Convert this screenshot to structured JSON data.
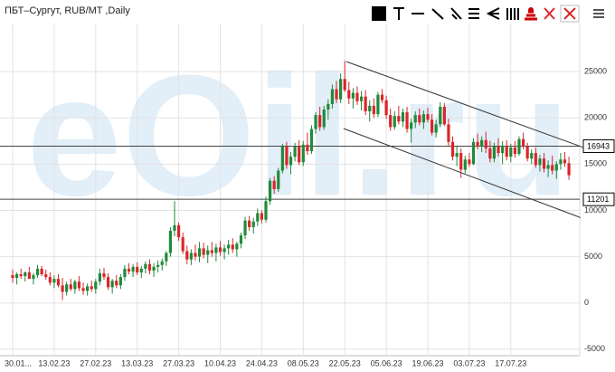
{
  "chart_data": {
    "type": "candlestick",
    "title": "ПБТ–Сургут, RUB/MT ,Daily",
    "watermark": "eOil.ru",
    "up_color": "#1f8a3b",
    "down_color": "#d9262a",
    "ylim": [
      -5700,
      29800
    ],
    "yticks": [
      -5000,
      0,
      5000,
      10000,
      15000,
      20000,
      25000
    ],
    "grid": true,
    "hlines": [
      16943,
      11201
    ],
    "trendlines": [
      {
        "x": [
          80.4,
          137.5
        ],
        "y": [
          26070,
          16800
        ]
      },
      {
        "x": [
          79.7,
          136.8
        ],
        "y": [
          18850,
          9220
        ]
      }
    ],
    "categories": [
      "30.01...",
      null,
      null,
      null,
      null,
      null,
      null,
      null,
      null,
      null,
      "13.02.23",
      null,
      null,
      null,
      null,
      null,
      null,
      null,
      null,
      null,
      "27.02.23",
      null,
      null,
      null,
      null,
      null,
      null,
      null,
      null,
      null,
      "13.03.23",
      null,
      null,
      null,
      null,
      null,
      null,
      null,
      null,
      null,
      "27.03.23",
      null,
      null,
      null,
      null,
      null,
      null,
      null,
      null,
      null,
      "10.04.23",
      null,
      null,
      null,
      null,
      null,
      null,
      null,
      null,
      null,
      "24.04.23",
      null,
      null,
      null,
      null,
      null,
      null,
      null,
      null,
      null,
      "08.05.23",
      null,
      null,
      null,
      null,
      null,
      null,
      null,
      null,
      null,
      "22.05.23",
      null,
      null,
      null,
      null,
      null,
      null,
      null,
      null,
      null,
      "05.06.23",
      null,
      null,
      null,
      null,
      null,
      null,
      null,
      null,
      null,
      "19.06.23",
      null,
      null,
      null,
      null,
      null,
      null,
      null,
      null,
      null,
      "03.07.23",
      null,
      null,
      null,
      null,
      null,
      null,
      null,
      null,
      null,
      "17.07.23",
      null,
      null,
      null,
      null,
      null,
      null,
      null,
      null,
      null,
      null,
      null,
      null,
      null,
      null
    ],
    "candles": [
      [
        3000,
        3600,
        2200,
        2700
      ],
      [
        2700,
        3300,
        2000,
        3100
      ],
      [
        3100,
        3700,
        2600,
        2900
      ],
      [
        2900,
        3400,
        2300,
        3300
      ],
      [
        3300,
        3900,
        2800,
        2600
      ],
      [
        2600,
        3200,
        2000,
        3000
      ],
      [
        3000,
        4100,
        2700,
        3700
      ],
      [
        3700,
        4000,
        2900,
        3100
      ],
      [
        3100,
        3600,
        2500,
        2800
      ],
      [
        2800,
        3300,
        1900,
        2200
      ],
      [
        2200,
        3000,
        1600,
        2600
      ],
      [
        2600,
        3100,
        1700,
        1900
      ],
      [
        1900,
        2700,
        300,
        1200
      ],
      [
        1200,
        2300,
        800,
        2000
      ],
      [
        2000,
        2600,
        1300,
        1500
      ],
      [
        1500,
        2500,
        1000,
        2300
      ],
      [
        2300,
        2900,
        1300,
        1600
      ],
      [
        1600,
        2200,
        900,
        1300
      ],
      [
        1300,
        2100,
        800,
        1800
      ],
      [
        1800,
        2400,
        1200,
        1500
      ],
      [
        1500,
        2600,
        1000,
        2300
      ],
      [
        2300,
        3700,
        1900,
        3200
      ],
      [
        3200,
        3800,
        2500,
        2800
      ],
      [
        2800,
        3200,
        1400,
        1700
      ],
      [
        1700,
        2600,
        1000,
        2400
      ],
      [
        2400,
        3000,
        1600,
        1900
      ],
      [
        1900,
        3100,
        1500,
        2800
      ],
      [
        2800,
        4100,
        2400,
        3700
      ],
      [
        3700,
        4300,
        3100,
        3400
      ],
      [
        3400,
        4200,
        2800,
        3900
      ],
      [
        3900,
        4400,
        3000,
        3300
      ],
      [
        3300,
        4000,
        2700,
        3700
      ],
      [
        3700,
        4500,
        3200,
        4200
      ],
      [
        4200,
        4700,
        3100,
        3500
      ],
      [
        3500,
        4300,
        2800,
        3900
      ],
      [
        3900,
        4600,
        3300,
        4100
      ],
      [
        4100,
        4800,
        3500,
        4500
      ],
      [
        4500,
        5600,
        4000,
        5400
      ],
      [
        5400,
        8200,
        5000,
        7800
      ],
      [
        7800,
        11000,
        7200,
        8400
      ],
      [
        8400,
        8700,
        6700,
        7100
      ],
      [
        7100,
        7600,
        5300,
        5600
      ],
      [
        5600,
        6200,
        4200,
        4700
      ],
      [
        4700,
        5800,
        4100,
        5400
      ],
      [
        5400,
        6300,
        4600,
        5000
      ],
      [
        5000,
        6600,
        4400,
        5900
      ],
      [
        5900,
        6500,
        4800,
        5200
      ],
      [
        5200,
        6200,
        4300,
        5700
      ],
      [
        5700,
        6600,
        5000,
        5400
      ],
      [
        5400,
        6400,
        4500,
        6000
      ],
      [
        6000,
        6700,
        5100,
        5500
      ],
      [
        5500,
        6300,
        4700,
        5900
      ],
      [
        5900,
        6800,
        5200,
        6300
      ],
      [
        6300,
        7000,
        5400,
        5800
      ],
      [
        5800,
        6600,
        5000,
        6400
      ],
      [
        6400,
        7600,
        5900,
        7300
      ],
      [
        7300,
        9300,
        6900,
        8900
      ],
      [
        8900,
        9400,
        7800,
        8200
      ],
      [
        8200,
        9200,
        7500,
        8800
      ],
      [
        8800,
        10200,
        8300,
        9700
      ],
      [
        9700,
        10000,
        8600,
        9000
      ],
      [
        9000,
        11500,
        8700,
        11000
      ],
      [
        11000,
        13500,
        10600,
        13200
      ],
      [
        13200,
        13700,
        11800,
        12300
      ],
      [
        12300,
        14600,
        12000,
        14300
      ],
      [
        14300,
        17200,
        14000,
        16900
      ],
      [
        16900,
        17400,
        14500,
        14900
      ],
      [
        14900,
        16300,
        13900,
        15800
      ],
      [
        15800,
        17300,
        15300,
        16900
      ],
      [
        16900,
        17600,
        14900,
        15200
      ],
      [
        15200,
        17500,
        14800,
        17100
      ],
      [
        17100,
        18400,
        16000,
        16400
      ],
      [
        16400,
        19200,
        16100,
        18800
      ],
      [
        18800,
        20600,
        18300,
        20300
      ],
      [
        20300,
        21200,
        18600,
        19000
      ],
      [
        19000,
        21300,
        18700,
        20900
      ],
      [
        20900,
        22000,
        19800,
        21500
      ],
      [
        21500,
        23600,
        21000,
        23100
      ],
      [
        23100,
        24000,
        21600,
        22000
      ],
      [
        22000,
        24800,
        21600,
        24200
      ],
      [
        24200,
        26200,
        22800,
        23000
      ],
      [
        23000,
        23900,
        21500,
        22100
      ],
      [
        22100,
        23200,
        21000,
        22700
      ],
      [
        22700,
        23400,
        21400,
        21800
      ],
      [
        21800,
        22900,
        20800,
        22300
      ],
      [
        22300,
        23000,
        20300,
        20700
      ],
      [
        20700,
        21900,
        19600,
        21300
      ],
      [
        21300,
        22100,
        20000,
        20400
      ],
      [
        20400,
        22800,
        20100,
        22500
      ],
      [
        22500,
        23100,
        21600,
        21900
      ],
      [
        21900,
        22400,
        19900,
        20300
      ],
      [
        20300,
        21000,
        18600,
        19000
      ],
      [
        19000,
        20700,
        18700,
        20200
      ],
      [
        20200,
        21300,
        19300,
        19600
      ],
      [
        19600,
        21000,
        19000,
        20600
      ],
      [
        20600,
        21200,
        18400,
        18800
      ],
      [
        18800,
        19900,
        17300,
        19500
      ],
      [
        19500,
        20700,
        18900,
        20300
      ],
      [
        20300,
        21000,
        19200,
        19500
      ],
      [
        19500,
        20800,
        18800,
        20400
      ],
      [
        20400,
        21100,
        19500,
        19800
      ],
      [
        19800,
        20400,
        18100,
        18400
      ],
      [
        18400,
        19800,
        17900,
        19300
      ],
      [
        19300,
        21700,
        19000,
        21200
      ],
      [
        21200,
        21600,
        19100,
        19300
      ],
      [
        19300,
        19900,
        17000,
        17400
      ],
      [
        17400,
        18000,
        15400,
        15800
      ],
      [
        15800,
        16900,
        14800,
        16200
      ],
      [
        16200,
        16700,
        13500,
        14400
      ],
      [
        14400,
        15900,
        14000,
        15500
      ],
      [
        15500,
        16200,
        14700,
        15000
      ],
      [
        15000,
        17800,
        14900,
        17400
      ],
      [
        17400,
        18300,
        16600,
        16900
      ],
      [
        16900,
        18000,
        16300,
        17600
      ],
      [
        17600,
        18500,
        16200,
        16700
      ],
      [
        16700,
        17500,
        15200,
        15600
      ],
      [
        15600,
        17300,
        15200,
        16900
      ],
      [
        16900,
        17800,
        15800,
        16200
      ],
      [
        16200,
        17500,
        15000,
        17000
      ],
      [
        17000,
        17600,
        15400,
        15800
      ],
      [
        15800,
        17200,
        15200,
        16800
      ],
      [
        16800,
        17500,
        15700,
        16100
      ],
      [
        16100,
        18000,
        15900,
        17700
      ],
      [
        17700,
        18400,
        16600,
        16900
      ],
      [
        16900,
        17300,
        15300,
        15600
      ],
      [
        15600,
        16600,
        15000,
        16200
      ],
      [
        16200,
        16800,
        14600,
        14900
      ],
      [
        14900,
        16000,
        14200,
        15600
      ],
      [
        15600,
        16200,
        14100,
        14500
      ],
      [
        14500,
        15400,
        13600,
        14900
      ],
      [
        14900,
        15900,
        13900,
        14300
      ],
      [
        14300,
        15300,
        13400,
        15000
      ],
      [
        15000,
        16200,
        14400,
        15500
      ],
      [
        15500,
        16300,
        14700,
        15100
      ],
      [
        15100,
        15800,
        13300,
        13800
      ]
    ]
  }
}
